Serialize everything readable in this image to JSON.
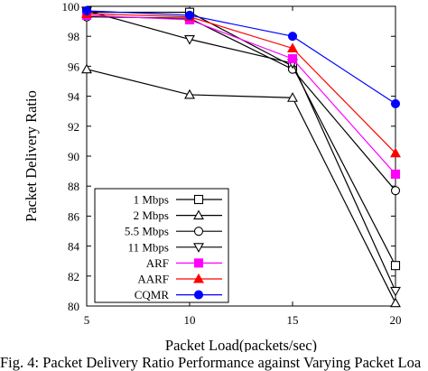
{
  "caption": "Fig. 4: Packet Delivery Ratio Performance against Varying Packet Loa",
  "chart_data": {
    "type": "line",
    "title": "",
    "xlabel": "Packet Load(packets/sec)",
    "ylabel": "Packet Delivery Ratio",
    "x": [
      5,
      10,
      15,
      20
    ],
    "xlim": [
      5,
      20
    ],
    "ylim": [
      80,
      100
    ],
    "xticks": [
      "5",
      "10",
      "15",
      "20"
    ],
    "yticks": [
      "80",
      "82",
      "84",
      "86",
      "88",
      "90",
      "92",
      "94",
      "96",
      "98",
      "100"
    ],
    "grid": false,
    "legend_position": "bottom-left",
    "series": [
      {
        "name": "1 Mbps",
        "values": [
          99.6,
          99.6,
          96.0,
          82.7
        ],
        "color": "#000000",
        "marker": "square-open"
      },
      {
        "name": "2 Mbps",
        "values": [
          95.8,
          94.1,
          93.9,
          80.2
        ],
        "color": "#000000",
        "marker": "triangle-open"
      },
      {
        "name": "5.5 Mbps",
        "values": [
          99.3,
          99.2,
          95.8,
          87.7
        ],
        "color": "#000000",
        "marker": "circle-open"
      },
      {
        "name": "11 Mbps",
        "values": [
          99.7,
          97.8,
          96.2,
          81.0
        ],
        "color": "#000000",
        "marker": "triangle-down-open"
      },
      {
        "name": "ARF",
        "values": [
          99.4,
          99.1,
          96.5,
          88.8
        ],
        "color": "#ff00ff",
        "marker": "square-filled"
      },
      {
        "name": "AARF",
        "values": [
          99.5,
          99.3,
          97.2,
          90.2
        ],
        "color": "#ff0000",
        "marker": "triangle-filled"
      },
      {
        "name": "CQMR",
        "values": [
          99.7,
          99.4,
          98.0,
          93.5
        ],
        "color": "#0000ff",
        "marker": "circle-filled"
      }
    ]
  }
}
